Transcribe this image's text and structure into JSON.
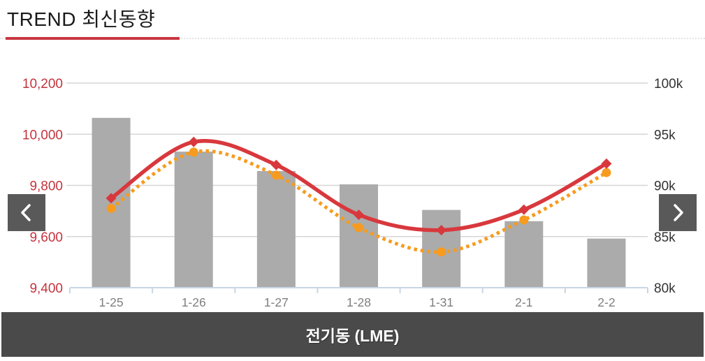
{
  "header": {
    "title": "TREND 최신동향"
  },
  "footer": {
    "label": "전기동 (LME)"
  },
  "nav": {
    "prev_icon": "chevron-left",
    "next_icon": "chevron-right"
  },
  "colors": {
    "accent_red": "#c8373f",
    "title_text": "#1a1a1a",
    "left_axis_text": "#c4343e",
    "right_axis_text": "#333333",
    "x_axis_text": "#7f7f7f",
    "gridline": "#d6d6d6",
    "axis_line": "#c9d6e4",
    "bar_fill": "#ababab",
    "line_solid": "#d8383d",
    "line_dotted": "#f79b1e",
    "nav_button_bg": "#595959",
    "footer_bg": "#4a4a4a",
    "footer_text": "#ffffff"
  },
  "chart_data": {
    "type": "bar+line combo",
    "title": "전기동 (LME)",
    "categories": [
      "1-25",
      "1-26",
      "1-27",
      "1-28",
      "1-31",
      "2-1",
      "2-2"
    ],
    "series": [
      {
        "name": "volume-bars",
        "type": "bar",
        "axis": "right",
        "color": "#ababab",
        "values": [
          96600,
          93300,
          91400,
          90100,
          87600,
          86500,
          84800
        ]
      },
      {
        "name": "price-solid-line",
        "type": "line",
        "style": "solid",
        "marker": "diamond",
        "axis": "left",
        "color": "#d8383d",
        "values": [
          9750,
          9970,
          9880,
          9685,
          9625,
          9705,
          9885
        ]
      },
      {
        "name": "price-dotted-line",
        "type": "line",
        "style": "dotted",
        "marker": "circle",
        "axis": "left",
        "color": "#f79b1e",
        "values": [
          9710,
          9930,
          9840,
          9635,
          9540,
          9665,
          9850
        ]
      }
    ],
    "left_axis": {
      "min": 9400,
      "max": 10200,
      "tick_values": [
        10200,
        10000,
        9800,
        9600,
        9400
      ],
      "tick_labels": [
        "10,200",
        "10,000",
        "9,800",
        "9,600",
        "9,400"
      ]
    },
    "right_axis": {
      "min": 80000,
      "max": 100000,
      "tick_values": [
        100000,
        95000,
        90000,
        85000,
        80000
      ],
      "tick_labels": [
        "100k",
        "95k",
        "90k",
        "85k",
        "80k"
      ]
    },
    "grid": true,
    "legend": "none"
  }
}
